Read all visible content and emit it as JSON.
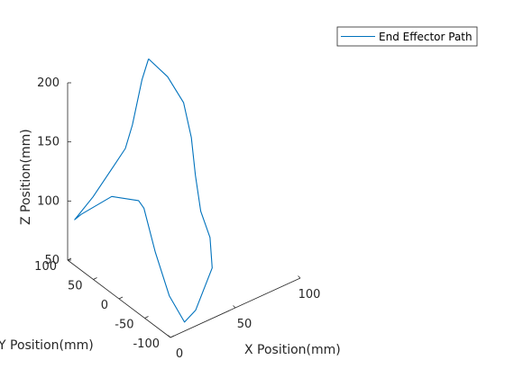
{
  "chart_data": {
    "type": "line",
    "projection": "3d",
    "legend": {
      "entries": [
        "End Effector Path"
      ],
      "placement": "top-right"
    },
    "xlabel": "X Position(mm)",
    "ylabel": "Y Position(mm)",
    "zlabel": "Z Position(mm)",
    "xlim": [
      0,
      100
    ],
    "ylim": [
      -100,
      100
    ],
    "zlim": [
      50,
      200
    ],
    "xticks": [
      "0",
      "50",
      "100"
    ],
    "yticks": [
      "-100",
      "-50",
      "0",
      "50",
      "100"
    ],
    "zticks": [
      "50",
      "100",
      "150",
      "200"
    ],
    "grid": false,
    "colors": {
      "series": "#0072BD",
      "axis": "#262626"
    },
    "series": [
      {
        "name": "End Effector Path",
        "points": [
          [
            54,
            79,
            200
          ],
          [
            60,
            57,
            189
          ],
          [
            64,
            36,
            172
          ],
          [
            62,
            16,
            150
          ],
          [
            58,
            -2,
            126
          ],
          [
            55,
            -20,
            103
          ],
          [
            57,
            -33,
            84
          ],
          [
            50,
            -55,
            69
          ],
          [
            25,
            -86,
            56
          ],
          [
            12,
            -97,
            56
          ],
          [
            11,
            -70,
            70
          ],
          [
            20,
            -20,
            86
          ],
          [
            35,
            40,
            96
          ],
          [
            38,
            58,
            95
          ],
          [
            30,
            90,
            92
          ],
          [
            10,
            99,
            84
          ],
          [
            5,
            99,
            82
          ],
          [
            14,
            86,
            101
          ],
          [
            24,
            70,
            128
          ],
          [
            31,
            66,
            140
          ],
          [
            38,
            70,
            155
          ],
          [
            49,
            79,
            185
          ],
          [
            54,
            79,
            200
          ]
        ]
      }
    ]
  }
}
